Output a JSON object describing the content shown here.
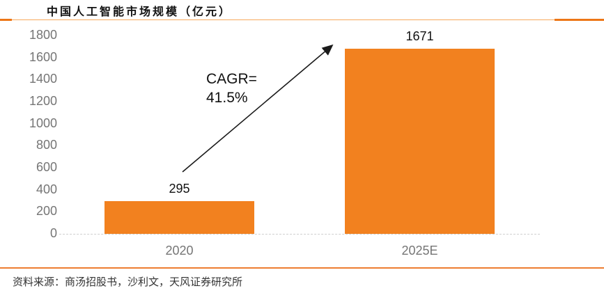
{
  "title": "中国人工智能市场规模（亿元）",
  "footer": {
    "source": "资料来源：商汤招股书，沙利文，天风证券研究所"
  },
  "annotation": {
    "line1": "CAGR=",
    "line2": "41.5%"
  },
  "colors": {
    "bar": "#F2811F",
    "divider_dark": "#ED7617",
    "divider_light": "#F7A95B",
    "footer_line": "#ED7D31",
    "axis_text": "#757575",
    "arrow": "#1A1A1A"
  },
  "chart_data": {
    "type": "bar",
    "title": "中国人工智能市场规模（亿元）",
    "categories": [
      "2020",
      "2025E"
    ],
    "values": [
      295,
      1671
    ],
    "value_labels": [
      "295",
      "1671"
    ],
    "xlabel": "",
    "ylabel": "",
    "ylim": [
      0,
      1800
    ],
    "ytick_step": 200,
    "ytick_labels": [
      "1800",
      "1600",
      "1400",
      "1200",
      "1000",
      "800",
      "600",
      "400",
      "200",
      "0"
    ],
    "grid": false,
    "legend": false,
    "annotation_text": "CAGR= 41.5%",
    "bar_color": "#F2811F"
  }
}
